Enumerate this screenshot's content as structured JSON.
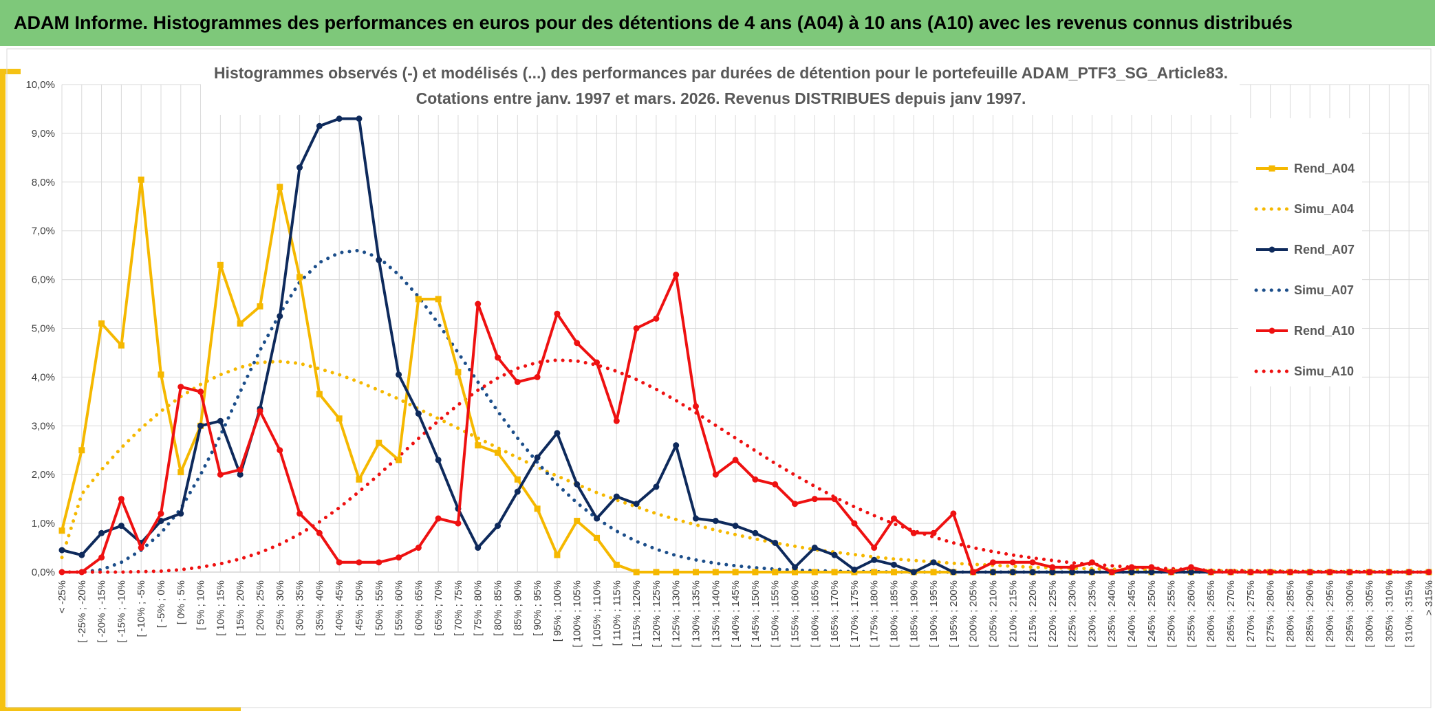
{
  "header": {
    "title": "ADAM Informe. Histogrammes des performances en euros pour des détentions de 4 ans (A04) à 10 ans (A10) avec les revenus connus distribués"
  },
  "colors": {
    "banner": "#7ec87a",
    "accent": "#f5c214",
    "a04": "#f5b800",
    "a07": "#0e2a5c",
    "a10": "#ee1111"
  },
  "chart_data": {
    "type": "line",
    "title": [
      "Histogrammes observés (-) et modélisés (...) des performances par durées de détention pour le portefeuille ADAM_PTF3_SG_Article83.",
      "Cotations entre janv. 1997 et mars. 2026. Revenus DISTRIBUES depuis janv 1997."
    ],
    "ylim": [
      0,
      10
    ],
    "yticks": [
      0,
      1,
      2,
      3,
      4,
      5,
      6,
      7,
      8,
      9,
      10
    ],
    "ytick_labels": [
      "0,0%",
      "1,0%",
      "2,0%",
      "3,0%",
      "4,0%",
      "5,0%",
      "6,0%",
      "7,0%",
      "8,0%",
      "9,0%",
      "10,0%"
    ],
    "grid": true,
    "legend_position": "right",
    "categories": [
      "< -25%",
      "[ -25% ; -20%",
      "[ -20% ; -15%",
      "[ -15% ; -10%",
      "[ -10% ; -5%",
      "[ -5% ; 0%",
      "[ 0% ; 5%",
      "[ 5% ; 10%",
      "[ 10% ; 15%",
      "[ 15% ; 20%",
      "[ 20% ; 25%",
      "[ 25% ; 30%",
      "[ 30% ; 35%",
      "[ 35% ; 40%",
      "[ 40% ; 45%",
      "[ 45% ; 50%",
      "[ 50% ; 55%",
      "[ 55% ; 60%",
      "[ 60% ; 65%",
      "[ 65% ; 70%",
      "[ 70% ; 75%",
      "[ 75% ; 80%",
      "[ 80% ; 85%",
      "[ 85% ; 90%",
      "[ 90% ; 95%",
      "[ 95% ; 100%",
      "[ 100% ; 105%",
      "[ 105% ; 110%",
      "[ 110% ; 115%",
      "[ 115% ; 120%",
      "[ 120% ; 125%",
      "[ 125% ; 130%",
      "[ 130% ; 135%",
      "[ 135% ; 140%",
      "[ 140% ; 145%",
      "[ 145% ; 150%",
      "[ 150% ; 155%",
      "[ 155% ; 160%",
      "[ 160% ; 165%",
      "[ 165% ; 170%",
      "[ 170% ; 175%",
      "[ 175% ; 180%",
      "[ 180% ; 185%",
      "[ 185% ; 190%",
      "[ 190% ; 195%",
      "[ 195% ; 200%",
      "[ 200% ; 205%",
      "[ 205% ; 210%",
      "[ 210% ; 215%",
      "[ 215% ; 220%",
      "[ 220% ; 225%",
      "[ 225% ; 230%",
      "[ 230% ; 235%",
      "[ 235% ; 240%",
      "[ 240% ; 245%",
      "[ 245% ; 250%",
      "[ 250% ; 255%",
      "[ 255% ; 260%",
      "[ 260% ; 265%",
      "[ 265% ; 270%",
      "[ 270% ; 275%",
      "[ 275% ; 280%",
      "[ 280% ; 285%",
      "[ 285% ; 290%",
      "[ 290% ; 295%",
      "[ 295% ; 300%",
      "[ 300% ; 305%",
      "[ 305% ; 310%",
      "[ 310% ; 315%",
      "> 315%"
    ],
    "series": [
      {
        "name": "Rend_A04",
        "style": "solid",
        "marker": "square",
        "color": "#f5b800",
        "values": [
          0.85,
          2.5,
          5.1,
          4.65,
          8.05,
          4.05,
          2.05,
          3.0,
          6.3,
          5.1,
          5.45,
          7.9,
          6.05,
          3.65,
          3.15,
          1.9,
          2.65,
          2.3,
          5.6,
          5.6,
          4.1,
          2.6,
          2.45,
          1.9,
          1.3,
          0.35,
          1.05,
          0.7,
          0.15,
          0,
          0,
          0,
          0,
          0,
          0,
          0,
          0,
          0,
          0,
          0,
          0,
          0,
          0,
          0,
          0,
          0,
          0,
          0,
          0,
          0,
          0,
          0,
          0,
          0,
          0,
          0,
          0,
          0,
          0,
          0,
          0,
          0,
          0,
          0,
          0,
          0,
          0,
          0,
          0,
          0
        ]
      },
      {
        "name": "Simu_A04",
        "style": "dotted",
        "marker": "none",
        "color": "#f5b800",
        "values": [
          0.3,
          1.6,
          2.1,
          2.55,
          2.95,
          3.3,
          3.6,
          3.85,
          4.05,
          4.2,
          4.3,
          4.32,
          4.28,
          4.17,
          4.05,
          3.9,
          3.73,
          3.55,
          3.35,
          3.15,
          2.95,
          2.75,
          2.55,
          2.35,
          2.15,
          1.97,
          1.8,
          1.63,
          1.48,
          1.34,
          1.2,
          1.08,
          0.97,
          0.86,
          0.77,
          0.68,
          0.6,
          0.53,
          0.46,
          0.41,
          0.36,
          0.31,
          0.27,
          0.24,
          0.21,
          0.18,
          0.16,
          0.14,
          0.12,
          0.1,
          0.09,
          0.08,
          0.07,
          0.06,
          0.05,
          0.04,
          0.04,
          0.03,
          0.03,
          0.02,
          0.02,
          0.02,
          0.01,
          0.01,
          0.01,
          0.01,
          0.01,
          0.01,
          0,
          0
        ]
      },
      {
        "name": "Rend_A07",
        "style": "solid",
        "marker": "circle",
        "color": "#0e2a5c",
        "values": [
          0.45,
          0.35,
          0.8,
          0.95,
          0.6,
          1.05,
          1.2,
          3.0,
          3.1,
          2.0,
          3.35,
          5.25,
          8.3,
          9.15,
          9.3,
          9.3,
          6.4,
          4.05,
          3.25,
          2.3,
          1.3,
          0.5,
          0.95,
          1.65,
          2.35,
          2.85,
          1.8,
          1.1,
          1.55,
          1.4,
          1.75,
          2.6,
          1.1,
          1.05,
          0.95,
          0.8,
          0.6,
          0.1,
          0.5,
          0.35,
          0.05,
          0.25,
          0.15,
          0.0,
          0.2,
          0,
          0,
          0,
          0,
          0,
          0,
          0,
          0,
          0,
          0,
          0,
          0,
          0,
          0,
          0,
          0,
          0,
          0,
          0,
          0,
          0,
          0,
          0,
          0,
          0
        ]
      },
      {
        "name": "Simu_A07",
        "style": "dotted",
        "marker": "none",
        "color": "#1c4e8a",
        "values": [
          0,
          0,
          0.05,
          0.2,
          0.45,
          0.8,
          1.3,
          2.0,
          2.8,
          3.7,
          4.55,
          5.3,
          5.95,
          6.35,
          6.55,
          6.6,
          6.45,
          6.1,
          5.65,
          5.1,
          4.5,
          3.9,
          3.3,
          2.75,
          2.25,
          1.8,
          1.42,
          1.1,
          0.84,
          0.63,
          0.47,
          0.34,
          0.25,
          0.18,
          0.13,
          0.09,
          0.06,
          0.04,
          0.03,
          0.02,
          0.01,
          0.01,
          0,
          0,
          0,
          0,
          0,
          0,
          0,
          0,
          0,
          0,
          0,
          0,
          0,
          0,
          0,
          0,
          0,
          0,
          0,
          0,
          0,
          0,
          0,
          0,
          0,
          0,
          0,
          0
        ]
      },
      {
        "name": "Rend_A10",
        "style": "solid",
        "marker": "circle",
        "color": "#ee1111",
        "values": [
          0.0,
          0.0,
          0.3,
          1.5,
          0.5,
          1.2,
          3.8,
          3.7,
          2.0,
          2.1,
          3.3,
          2.5,
          1.2,
          0.8,
          0.2,
          0.2,
          0.2,
          0.3,
          0.5,
          1.1,
          1.0,
          5.5,
          4.4,
          3.9,
          4.0,
          5.3,
          4.7,
          4.3,
          3.1,
          5.0,
          5.2,
          6.1,
          3.4,
          2.0,
          2.3,
          1.9,
          1.8,
          1.4,
          1.5,
          1.5,
          1.0,
          0.5,
          1.1,
          0.8,
          0.8,
          1.2,
          0.0,
          0.2,
          0.2,
          0.2,
          0.1,
          0.1,
          0.2,
          0.0,
          0.1,
          0.1,
          0.0,
          0.1,
          0.0,
          0.0,
          0.0,
          0.0,
          0.0,
          0.0,
          0.0,
          0.0,
          0.0,
          0.0,
          0.0,
          0.0
        ]
      },
      {
        "name": "Simu_A10",
        "style": "dotted",
        "marker": "none",
        "color": "#ee1111",
        "values": [
          0,
          0,
          0,
          0,
          0.01,
          0.02,
          0.05,
          0.1,
          0.17,
          0.27,
          0.4,
          0.57,
          0.78,
          1.03,
          1.32,
          1.65,
          2.0,
          2.37,
          2.74,
          3.1,
          3.43,
          3.73,
          3.98,
          4.18,
          4.3,
          4.35,
          4.33,
          4.25,
          4.12,
          3.95,
          3.75,
          3.52,
          3.27,
          3.01,
          2.75,
          2.49,
          2.23,
          1.99,
          1.76,
          1.54,
          1.34,
          1.16,
          0.99,
          0.85,
          0.72,
          0.6,
          0.5,
          0.42,
          0.35,
          0.29,
          0.24,
          0.19,
          0.16,
          0.13,
          0.1,
          0.08,
          0.07,
          0.05,
          0.04,
          0.03,
          0.03,
          0.02,
          0.02,
          0.01,
          0.01,
          0.01,
          0.01,
          0,
          0,
          0
        ]
      }
    ]
  }
}
